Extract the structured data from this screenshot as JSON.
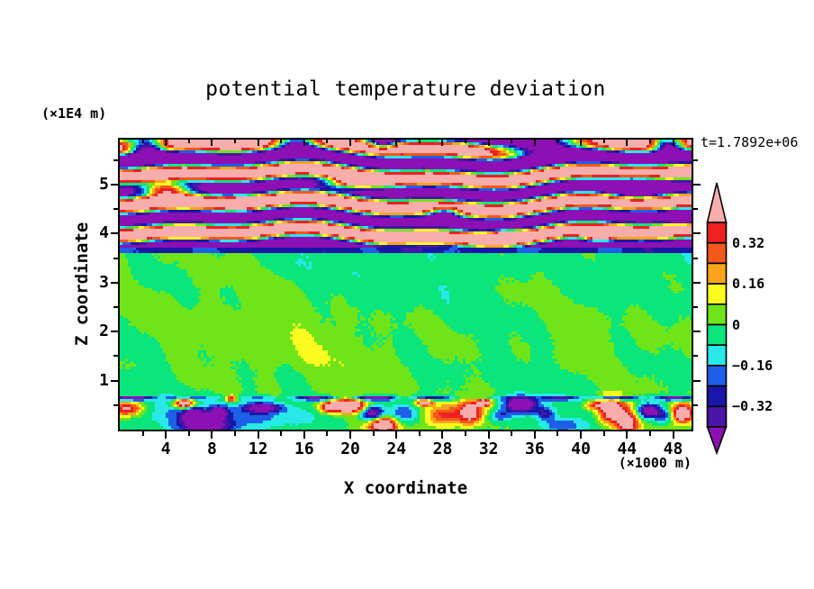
{
  "title": "potential temperature deviation",
  "time_label": "t=1.7892e+06",
  "axes": {
    "x": {
      "label": "X coordinate",
      "unit": "(×1000 m)",
      "min": 0,
      "max": 49.6,
      "major_ticks": [
        {
          "value": 4,
          "label": "4"
        },
        {
          "value": 8,
          "label": "8"
        },
        {
          "value": 12,
          "label": "12"
        },
        {
          "value": 16,
          "label": "16"
        },
        {
          "value": 20,
          "label": "20"
        },
        {
          "value": 24,
          "label": "24"
        },
        {
          "value": 28,
          "label": "28"
        },
        {
          "value": 32,
          "label": "32"
        },
        {
          "value": 36,
          "label": "36"
        },
        {
          "value": 40,
          "label": "40"
        },
        {
          "value": 44,
          "label": "44"
        },
        {
          "value": 48,
          "label": "48"
        }
      ],
      "minor_ticks": [
        2,
        6,
        10,
        14,
        18,
        22,
        26,
        30,
        34,
        38,
        42,
        46
      ]
    },
    "z": {
      "label": "Z coordinate",
      "unit": "(×1E4 m)",
      "min": 0,
      "max": 5.92,
      "major_ticks": [
        {
          "value": 1,
          "label": "1"
        },
        {
          "value": 2,
          "label": "2"
        },
        {
          "value": 3,
          "label": "3"
        },
        {
          "value": 4,
          "label": "4"
        },
        {
          "value": 5,
          "label": "5"
        }
      ],
      "minor_ticks": [
        0.5,
        1.5,
        2.5,
        3.5,
        4.5,
        5.5
      ]
    }
  },
  "colorbar": {
    "level_min": -0.4,
    "level_max": 0.4,
    "step": 0.08,
    "labels": [
      {
        "text": "0.32",
        "level": 0.32
      },
      {
        "text": "0.16",
        "level": 0.16
      },
      {
        "text": "0",
        "level": 0
      },
      {
        "text": "−0.16",
        "level": -0.16
      },
      {
        "text": "−0.32",
        "level": -0.32
      }
    ]
  },
  "chart_data": {
    "type": "heatmap",
    "title": "potential temperature deviation",
    "xlabel": "X coordinate",
    "ylabel": "Z coordinate",
    "x_units": "×1000 m",
    "z_units": "×1E4 m",
    "time": "t=1.7892e+06",
    "xlim": [
      0,
      49.6
    ],
    "zlim": [
      0,
      5.92
    ],
    "contour_levels": [
      -0.4,
      -0.32,
      -0.24,
      -0.16,
      -0.08,
      0,
      0.08,
      0.16,
      0.24,
      0.32,
      0.4
    ],
    "palette": [
      "#8C10B4",
      "#4A14A8",
      "#1A17A8",
      "#1E5FE8",
      "#29E8E8",
      "#0AE57C",
      "#6FE519",
      "#FBFB20",
      "#FAA51B",
      "#F2591A",
      "#EE2020",
      "#F8ADAD"
    ],
    "palette_meaning": "values below -0.4 -> purple underflow arrow, above 0.4 -> pink overflow arrow, 0.08 steps between",
    "field_model": {
      "speckle": 0.012,
      "upper": {
        "z_start": 3.73,
        "period": 0.6,
        "p0": -1.32,
        "amp": 0.58,
        "sharp": 1.2,
        "phase": [
          {
            "L": 26,
            "a": 0.7,
            "p": 0.8
          },
          {
            "L": 11.5,
            "a": 0.45,
            "p": 2.1
          },
          {
            "L": 49.6,
            "a": 0.6,
            "p": 4.0
          }
        ],
        "defects": [
          {
            "x": 2.3,
            "z": 5.75,
            "w": 1.6,
            "h": 0.2,
            "a": -1.0
          },
          {
            "x": 15.3,
            "z": 5.84,
            "w": 1.8,
            "h": 0.14,
            "a": -0.9
          },
          {
            "x": 22.8,
            "z": 5.87,
            "w": 1.1,
            "h": 0.12,
            "a": -0.85
          },
          {
            "x": 36.5,
            "z": 5.8,
            "w": 3.4,
            "h": 0.24,
            "a": -1.2
          },
          {
            "x": 47.6,
            "z": 5.8,
            "w": 1.3,
            "h": 0.16,
            "a": -1.0
          },
          {
            "x": 4.0,
            "z": 4.9,
            "w": 2.2,
            "h": 0.16,
            "a": 0.95
          },
          {
            "x": 20.3,
            "z": 5.03,
            "w": 2.6,
            "h": 0.12,
            "a": 0.9
          },
          {
            "x": 44.8,
            "z": 4.95,
            "w": 2.2,
            "h": 0.2,
            "a": -0.95
          },
          {
            "x": 28.2,
            "z": 4.42,
            "w": 1.3,
            "h": 0.1,
            "a": -0.8
          },
          {
            "x": 33.8,
            "z": 3.97,
            "w": 1.6,
            "h": 0.1,
            "a": 0.75
          },
          {
            "x": 10.5,
            "z": 4.62,
            "w": 1.4,
            "h": 0.09,
            "a": 0.65
          },
          {
            "x": 41.5,
            "z": 3.92,
            "w": 1.4,
            "h": 0.09,
            "a": 0.7
          },
          {
            "x": 48.9,
            "z": 4.35,
            "w": 1.0,
            "h": 0.12,
            "a": -0.8
          }
        ]
      },
      "interface": {
        "top": 3.73,
        "bottom": 3.6,
        "value": -0.27,
        "wobble": 0.04,
        "kx": 0.9
      },
      "mid": {
        "bias_base": -0.022,
        "bias_amp": 0.038,
        "bias_z": 1.9,
        "bias_w": 0.9,
        "waves": [
          {
            "kx": 0.55,
            "kz": 2.2,
            "a": 0.021,
            "p": 1.0
          },
          {
            "kx": 0.23,
            "kz": 1.1,
            "a": 0.024,
            "p": 2.3
          },
          {
            "kx": 1.05,
            "kz": 3.1,
            "a": 0.014,
            "p": 4.1
          },
          {
            "kx": 0.34,
            "kz": 5.2,
            "a": 0.016,
            "p": 0.5
          },
          {
            "kx": 1.7,
            "kz": 1.6,
            "a": 0.011,
            "p": 2.9
          },
          {
            "kx": 0.08,
            "kz": 0.9,
            "a": 0.02,
            "p": 5.6
          }
        ]
      },
      "boundary": {
        "top": 0.78,
        "bias": -0.015,
        "line_z": 0.64,
        "line_w": 0.045,
        "line_amp": -0.5,
        "line_period": 10.5,
        "line_period2": 23,
        "line_phase": 0.9,
        "blobs": [
          {
            "x": 0.6,
            "z": 0.42,
            "w": 1.3,
            "h": 0.14,
            "a": 0.5
          },
          {
            "x": 7.0,
            "z": 0.3,
            "w": 7.0,
            "h": 0.25,
            "a": -0.13
          },
          {
            "x": 14.0,
            "z": 0.25,
            "w": 4.0,
            "h": 0.2,
            "a": -0.1
          },
          {
            "x": 5.6,
            "z": 0.53,
            "w": 0.9,
            "h": 0.1,
            "a": 0.7
          },
          {
            "x": 6.4,
            "z": 0.3,
            "w": 0.9,
            "h": 0.15,
            "a": -0.45
          },
          {
            "x": 8.6,
            "z": 0.35,
            "w": 0.8,
            "h": 0.13,
            "a": -0.45
          },
          {
            "x": 7.5,
            "z": 0.06,
            "w": 2.4,
            "h": 0.18,
            "a": -0.45
          },
          {
            "x": 9.7,
            "z": 0.63,
            "w": 0.5,
            "h": 0.06,
            "a": 0.5
          },
          {
            "x": 12.4,
            "z": 0.45,
            "w": 1.7,
            "h": 0.1,
            "a": -0.5
          },
          {
            "x": 18.2,
            "z": 0.45,
            "w": 0.9,
            "h": 0.1,
            "a": 0.4
          },
          {
            "x": 19.8,
            "z": 0.48,
            "w": 1.5,
            "h": 0.13,
            "a": 0.75
          },
          {
            "x": 21.9,
            "z": 0.33,
            "w": 1.0,
            "h": 0.16,
            "a": -0.55
          },
          {
            "x": 22.9,
            "z": 0.1,
            "w": 1.2,
            "h": 0.16,
            "a": 0.65
          },
          {
            "x": 24.6,
            "z": 0.32,
            "w": 1.3,
            "h": 0.2,
            "a": -0.28
          },
          {
            "x": 26.4,
            "z": 0.55,
            "w": 0.7,
            "h": 0.07,
            "a": 0.55
          },
          {
            "x": 28.1,
            "z": 0.3,
            "w": 1.6,
            "h": 0.22,
            "a": 0.35
          },
          {
            "x": 30.4,
            "z": 0.35,
            "w": 1.1,
            "h": 0.25,
            "a": 0.55
          },
          {
            "x": 31.6,
            "z": 0.55,
            "w": 0.6,
            "h": 0.07,
            "a": 0.6
          },
          {
            "x": 34.8,
            "z": 0.5,
            "w": 1.4,
            "h": 0.16,
            "a": -0.65
          },
          {
            "x": 33.0,
            "z": 0.28,
            "w": 1.0,
            "h": 0.12,
            "a": -0.25
          },
          {
            "x": 36.9,
            "z": 0.33,
            "w": 0.8,
            "h": 0.12,
            "a": -0.3
          },
          {
            "x": 38.5,
            "z": 0.08,
            "w": 2.0,
            "h": 0.15,
            "a": -0.22
          },
          {
            "x": 41.2,
            "z": 0.5,
            "w": 0.9,
            "h": 0.09,
            "a": 0.35
          },
          {
            "x": 42.6,
            "z": 0.4,
            "w": 1.1,
            "h": 0.28,
            "a": 0.6
          },
          {
            "x": 44.1,
            "z": 0.15,
            "w": 1.0,
            "h": 0.3,
            "a": 0.5
          },
          {
            "x": 45.9,
            "z": 0.38,
            "w": 1.1,
            "h": 0.15,
            "a": -0.55
          },
          {
            "x": 47.3,
            "z": 0.28,
            "w": 0.8,
            "h": 0.14,
            "a": -0.22
          },
          {
            "x": 48.8,
            "z": 0.33,
            "w": 1.0,
            "h": 0.2,
            "a": 0.65
          }
        ]
      }
    }
  }
}
